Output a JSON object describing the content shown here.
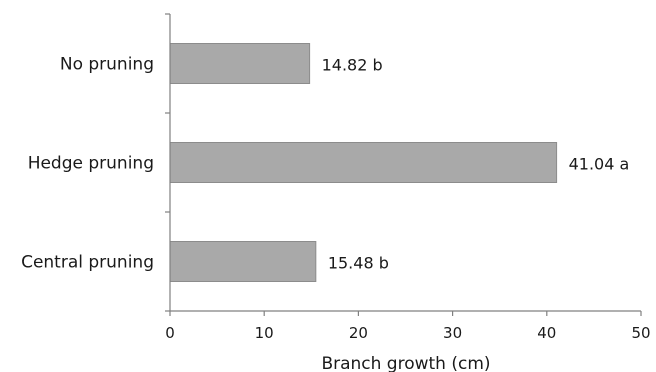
{
  "chart_data": {
    "type": "bar",
    "orientation": "horizontal",
    "categories": [
      "No pruning",
      "Hedge pruning",
      "Central pruning"
    ],
    "values": [
      14.82,
      41.04,
      15.48
    ],
    "data_labels": [
      "14.82 b",
      "41.04 a",
      "15.48 b"
    ],
    "xlabel": "Branch growth (cm)",
    "ylabel": "",
    "xlim": [
      0,
      50
    ],
    "xticks": [
      0,
      10,
      20,
      30,
      40,
      50
    ],
    "grid": false,
    "bar_color": "#a9a9a9"
  }
}
